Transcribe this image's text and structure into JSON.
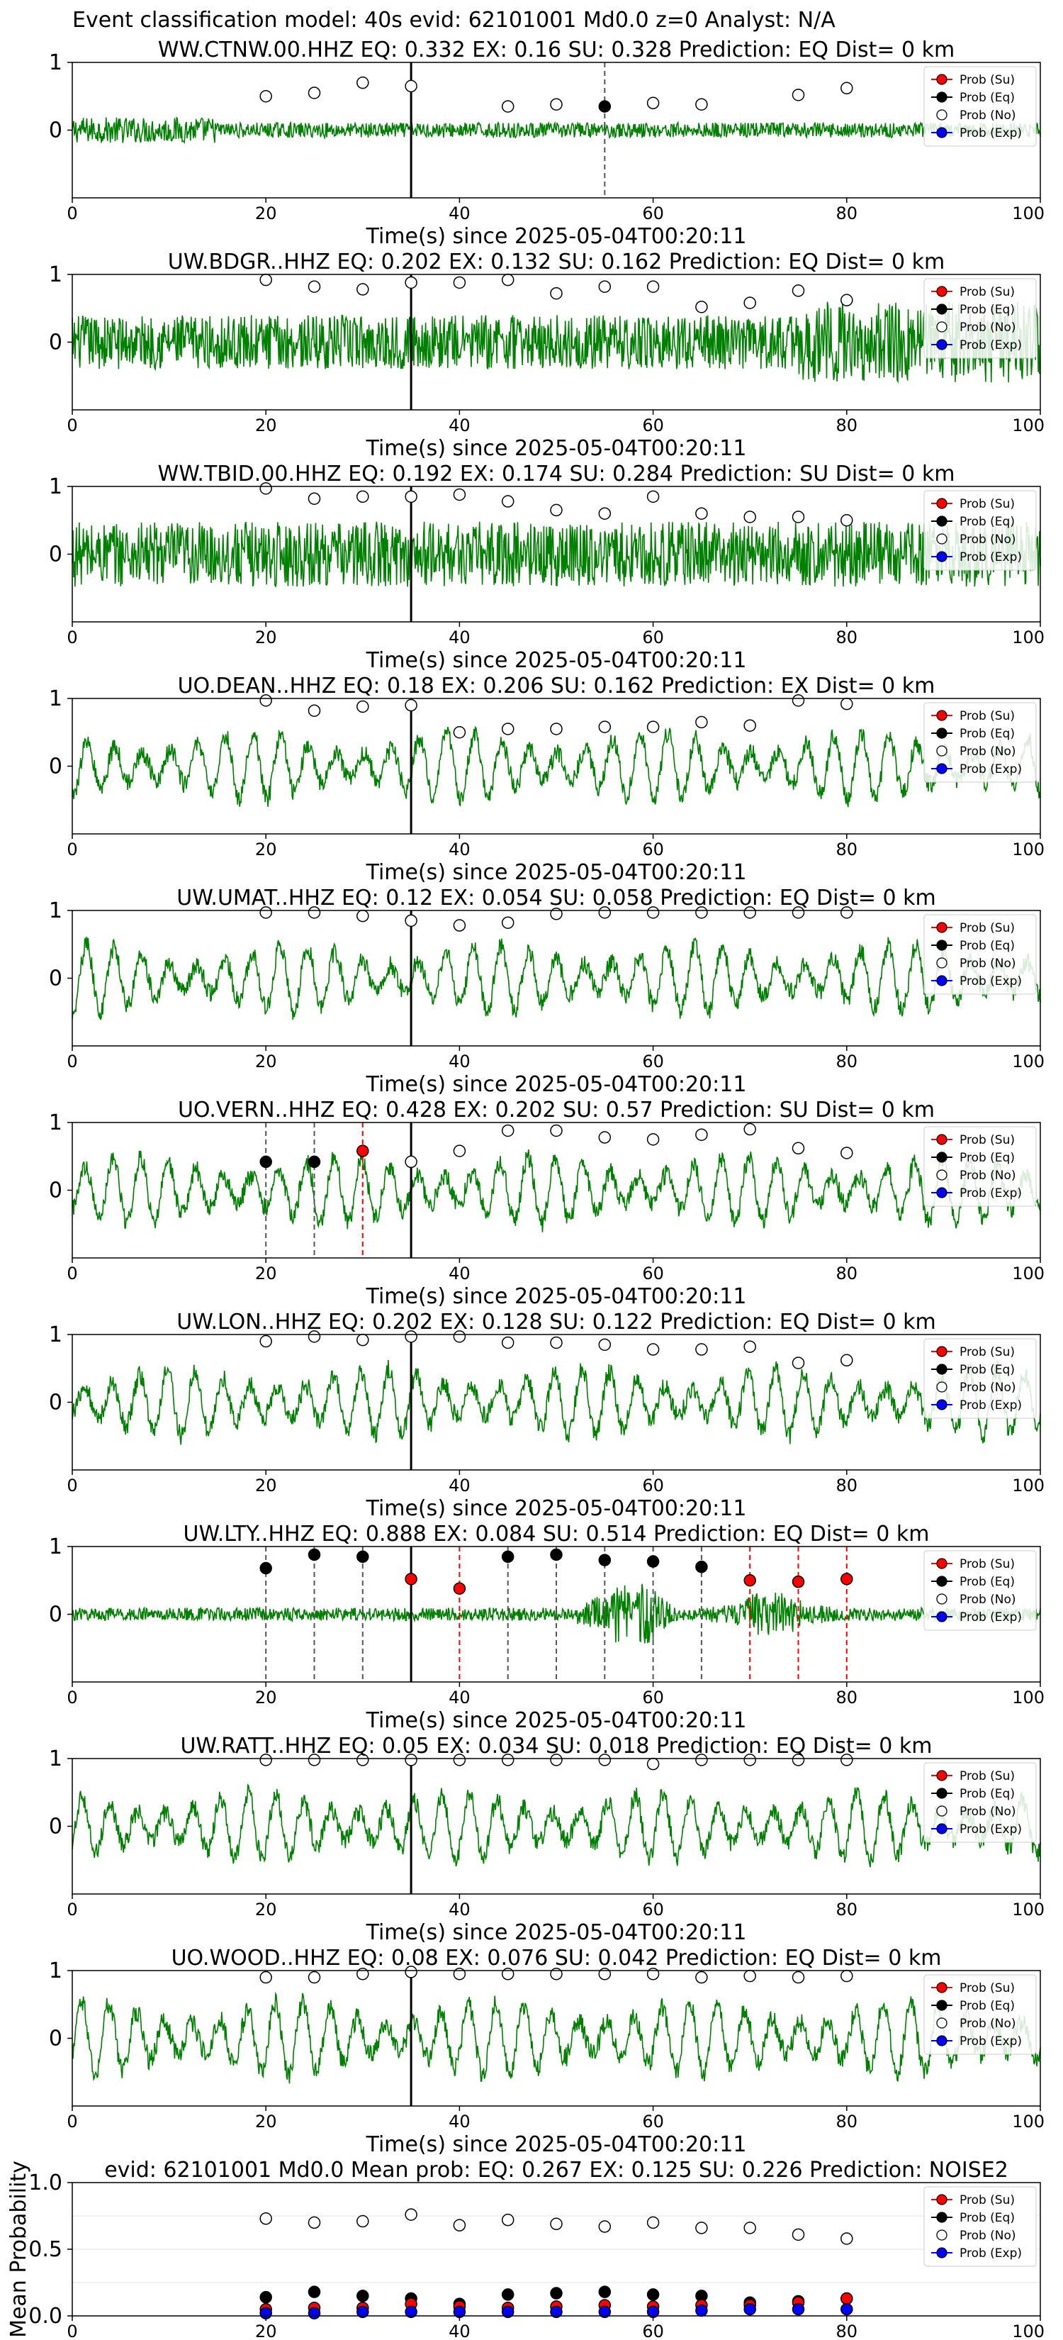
{
  "figure": {
    "suptitle": "Event classification model: 40s evid: 62101001 Md0.0 z=0 Analyst: N/A"
  },
  "legend": {
    "entries": [
      {
        "label": "Prob (Su)",
        "color": "#ff0000"
      },
      {
        "label": "Prob (Eq)",
        "color": "#000000"
      },
      {
        "label": "Prob (No)",
        "color": "#ffffff"
      },
      {
        "label": "Prob (Exp)",
        "color": "#0000ff"
      }
    ]
  },
  "colors": {
    "waveform": "#008000",
    "su": "#ff0000",
    "eq": "#000000",
    "no": "#ffffff",
    "exp": "#0000ff"
  },
  "chart_data": [
    {
      "type": "line",
      "title": "WW.CTNW.00.HHZ   EQ: 0.332  EX: 0.16  SU: 0.328   Prediction: EQ    Dist= 0 km",
      "xlabel": "Time(s) since 2025-05-04T00:20:11",
      "xlim": [
        0,
        100
      ],
      "ylim": [
        -1,
        1
      ],
      "xticks": [
        0,
        20,
        40,
        60,
        80,
        100
      ],
      "yticks": [
        0,
        1
      ],
      "pick_time": 35,
      "amplitude": 0.28,
      "noise": {
        "x": [
          20,
          25,
          30,
          35,
          45,
          50,
          60,
          65,
          75,
          80
        ],
        "y": [
          0.5,
          0.55,
          0.7,
          0.65,
          0.35,
          0.38,
          0.4,
          0.38,
          0.52,
          0.62
        ]
      },
      "eq": {
        "x": [
          55
        ],
        "y": [
          0.35
        ]
      },
      "su": {
        "x": [],
        "y": []
      },
      "eq_lines": [
        55
      ],
      "su_lines": []
    },
    {
      "type": "line",
      "title": "UW.BDGR..HHZ   EQ: 0.202  EX: 0.132  SU: 0.162   Prediction: EQ    Dist= 0 km",
      "xlabel": "Time(s) since 2025-05-04T00:20:11",
      "xlim": [
        0,
        100
      ],
      "ylim": [
        -1,
        1
      ],
      "xticks": [
        0,
        20,
        40,
        60,
        80,
        100
      ],
      "yticks": [
        0,
        1
      ],
      "pick_time": 35,
      "amplitude": 0.5,
      "noise": {
        "x": [
          20,
          25,
          30,
          35,
          40,
          45,
          50,
          55,
          60,
          65,
          70,
          75,
          80
        ],
        "y": [
          0.92,
          0.82,
          0.78,
          0.88,
          0.88,
          0.92,
          0.72,
          0.82,
          0.82,
          0.52,
          0.58,
          0.76,
          0.62
        ]
      },
      "eq": {
        "x": [],
        "y": []
      },
      "su": {
        "x": [],
        "y": []
      },
      "eq_lines": [],
      "su_lines": []
    },
    {
      "type": "line",
      "title": "WW.TBID.00.HHZ   EQ: 0.192  EX: 0.174  SU: 0.284   Prediction: SU    Dist= 0 km",
      "xlabel": "Time(s) since 2025-05-04T00:20:11",
      "xlim": [
        0,
        100
      ],
      "ylim": [
        -1,
        1
      ],
      "xticks": [
        0,
        20,
        40,
        60,
        80,
        100
      ],
      "yticks": [
        0,
        1
      ],
      "pick_time": 35,
      "amplitude": 0.6,
      "noise": {
        "x": [
          20,
          25,
          30,
          35,
          40,
          45,
          50,
          55,
          60,
          65,
          70,
          75,
          80
        ],
        "y": [
          0.97,
          0.82,
          0.85,
          0.85,
          0.88,
          0.78,
          0.65,
          0.6,
          0.85,
          0.6,
          0.55,
          0.55,
          0.5
        ]
      },
      "eq": {
        "x": [],
        "y": []
      },
      "su": {
        "x": [],
        "y": []
      },
      "eq_lines": [],
      "su_lines": []
    },
    {
      "type": "line",
      "title": "UO.DEAN..HHZ   EQ: 0.18  EX: 0.206  SU: 0.162   Prediction: EX    Dist= 0 km",
      "xlabel": "Time(s) since 2025-05-04T00:20:11",
      "xlim": [
        0,
        100
      ],
      "ylim": [
        -1,
        1
      ],
      "xticks": [
        0,
        20,
        40,
        60,
        80,
        100
      ],
      "yticks": [
        0,
        1
      ],
      "pick_time": 35,
      "amplitude": 0.55,
      "noise": {
        "x": [
          20,
          25,
          30,
          35,
          40,
          45,
          50,
          55,
          60,
          65,
          70,
          75,
          80
        ],
        "y": [
          0.97,
          0.82,
          0.88,
          0.9,
          0.5,
          0.55,
          0.55,
          0.58,
          0.58,
          0.65,
          0.6,
          0.97,
          0.92
        ]
      },
      "eq": {
        "x": [],
        "y": []
      },
      "su": {
        "x": [],
        "y": []
      },
      "eq_lines": [],
      "su_lines": []
    },
    {
      "type": "line",
      "title": "UW.UMAT..HHZ   EQ: 0.12  EX: 0.054  SU: 0.058   Prediction: EQ    Dist= 0 km",
      "xlabel": "Time(s) since 2025-05-04T00:20:11",
      "xlim": [
        0,
        100
      ],
      "ylim": [
        -1,
        1
      ],
      "xticks": [
        0,
        20,
        40,
        60,
        80,
        100
      ],
      "yticks": [
        0,
        1
      ],
      "pick_time": 35,
      "amplitude": 0.55,
      "noise": {
        "x": [
          20,
          25,
          30,
          35,
          40,
          45,
          50,
          55,
          60,
          65,
          70,
          75,
          80
        ],
        "y": [
          0.97,
          0.97,
          0.92,
          0.85,
          0.78,
          0.82,
          0.95,
          0.97,
          0.97,
          0.97,
          0.97,
          0.97,
          0.97
        ]
      },
      "eq": {
        "x": [],
        "y": []
      },
      "su": {
        "x": [],
        "y": []
      },
      "eq_lines": [],
      "su_lines": []
    },
    {
      "type": "line",
      "title": "UO.VERN..HHZ   EQ: 0.428  EX: 0.202  SU: 0.57   Prediction: SU    Dist= 0 km",
      "xlabel": "Time(s) since 2025-05-04T00:20:11",
      "xlim": [
        0,
        100
      ],
      "ylim": [
        -1,
        1
      ],
      "xticks": [
        0,
        20,
        40,
        60,
        80,
        100
      ],
      "yticks": [
        0,
        1
      ],
      "pick_time": 35,
      "amplitude": 0.55,
      "noise": {
        "x": [
          35,
          40,
          45,
          50,
          55,
          60,
          65,
          70,
          75,
          80
        ],
        "y": [
          0.42,
          0.58,
          0.88,
          0.88,
          0.78,
          0.75,
          0.82,
          0.9,
          0.62,
          0.55
        ]
      },
      "eq": {
        "x": [
          20,
          25
        ],
        "y": [
          0.42,
          0.42
        ]
      },
      "su": {
        "x": [
          30
        ],
        "y": [
          0.58
        ]
      },
      "eq_lines": [
        20,
        25
      ],
      "su_lines": [
        30
      ]
    },
    {
      "type": "line",
      "title": "UW.LON..HHZ   EQ: 0.202  EX: 0.128  SU: 0.122   Prediction: EQ    Dist= 0 km",
      "xlabel": "Time(s) since 2025-05-04T00:20:11",
      "xlim": [
        0,
        100
      ],
      "ylim": [
        -1,
        1
      ],
      "xticks": [
        0,
        20,
        40,
        60,
        80,
        100
      ],
      "yticks": [
        0,
        1
      ],
      "pick_time": 35,
      "amplitude": 0.55,
      "noise": {
        "x": [
          20,
          25,
          30,
          35,
          40,
          45,
          50,
          55,
          60,
          65,
          70,
          75,
          80
        ],
        "y": [
          0.9,
          0.97,
          0.92,
          0.97,
          0.97,
          0.88,
          0.88,
          0.85,
          0.78,
          0.78,
          0.82,
          0.58,
          0.62
        ]
      },
      "eq": {
        "x": [],
        "y": []
      },
      "su": {
        "x": [],
        "y": []
      },
      "eq_lines": [],
      "su_lines": []
    },
    {
      "type": "line",
      "title": "UW.LTY..HHZ   EQ: 0.888  EX: 0.084  SU: 0.514   Prediction: EQ    Dist= 0 km",
      "xlabel": "Time(s) since 2025-05-04T00:20:11",
      "xlim": [
        0,
        100
      ],
      "ylim": [
        -1,
        1
      ],
      "xticks": [
        0,
        20,
        40,
        60,
        80,
        100
      ],
      "yticks": [
        0,
        1
      ],
      "pick_time": 35,
      "amplitude": 0.18,
      "noise": {
        "x": [],
        "y": []
      },
      "eq": {
        "x": [
          20,
          25,
          30,
          45,
          50,
          55,
          60,
          65
        ],
        "y": [
          0.68,
          0.88,
          0.85,
          0.85,
          0.88,
          0.8,
          0.78,
          0.7
        ]
      },
      "su": {
        "x": [
          35,
          40,
          70,
          75,
          80
        ],
        "y": [
          0.52,
          0.38,
          0.5,
          0.48,
          0.52
        ]
      },
      "eq_lines": [
        20,
        25,
        30,
        45,
        50,
        55,
        60,
        65
      ],
      "su_lines": [
        40,
        70,
        75,
        80
      ]
    },
    {
      "type": "line",
      "title": "UW.RATT..HHZ   EQ: 0.05  EX: 0.034  SU: 0.018   Prediction: EQ    Dist= 0 km",
      "xlabel": "Time(s) since 2025-05-04T00:20:11",
      "xlim": [
        0,
        100
      ],
      "ylim": [
        -1,
        1
      ],
      "xticks": [
        0,
        20,
        40,
        60,
        80,
        100
      ],
      "yticks": [
        0,
        1
      ],
      "pick_time": 35,
      "amplitude": 0.55,
      "noise": {
        "x": [
          20,
          25,
          30,
          35,
          40,
          45,
          50,
          55,
          60,
          65,
          70,
          75,
          80
        ],
        "y": [
          0.98,
          0.98,
          0.98,
          0.98,
          0.98,
          0.98,
          0.98,
          0.98,
          0.92,
          0.98,
          0.98,
          0.98,
          0.98
        ]
      },
      "eq": {
        "x": [],
        "y": []
      },
      "su": {
        "x": [],
        "y": []
      },
      "eq_lines": [],
      "su_lines": []
    },
    {
      "type": "line",
      "title": "UO.WOOD..HHZ   EQ: 0.08  EX: 0.076  SU: 0.042   Prediction: EQ    Dist= 0 km",
      "xlabel": "Time(s) since 2025-05-04T00:20:11",
      "xlim": [
        0,
        100
      ],
      "ylim": [
        -1,
        1
      ],
      "xticks": [
        0,
        20,
        40,
        60,
        80,
        100
      ],
      "yticks": [
        0,
        1
      ],
      "pick_time": 35,
      "amplitude": 0.6,
      "noise": {
        "x": [
          20,
          25,
          30,
          35,
          40,
          45,
          50,
          55,
          60,
          65,
          70,
          75,
          80
        ],
        "y": [
          0.9,
          0.9,
          0.95,
          0.98,
          0.95,
          0.95,
          0.95,
          0.95,
          0.95,
          0.9,
          0.92,
          0.9,
          0.92
        ]
      },
      "eq": {
        "x": [],
        "y": []
      },
      "su": {
        "x": [],
        "y": []
      },
      "eq_lines": [],
      "su_lines": []
    },
    {
      "type": "scatter",
      "title": "evid: 62101001   Md0.0   Mean prob:   EQ: 0.267  EX: 0.125  SU: 0.226   Prediction: NOISE2",
      "xlabel": "",
      "ylabel": "Mean Probability",
      "xlim": [
        0,
        100
      ],
      "ylim": [
        0,
        1
      ],
      "xticks": [
        0,
        20,
        40,
        60,
        80,
        100
      ],
      "yticks": [
        0.0,
        0.5,
        1.0
      ],
      "ytick_labels": [
        "0.0",
        "0.5",
        "1.0"
      ],
      "x": [
        20,
        25,
        30,
        35,
        40,
        45,
        50,
        55,
        60,
        65,
        70,
        75,
        80
      ],
      "series": [
        {
          "name": "Prob (No)",
          "values": [
            0.73,
            0.7,
            0.71,
            0.76,
            0.68,
            0.72,
            0.69,
            0.67,
            0.7,
            0.66,
            0.66,
            0.61,
            0.58
          ]
        },
        {
          "name": "Prob (Eq)",
          "values": [
            0.14,
            0.18,
            0.15,
            0.13,
            0.09,
            0.16,
            0.17,
            0.18,
            0.16,
            0.15,
            0.1,
            0.11,
            0.13
          ]
        },
        {
          "name": "Prob (Su)",
          "values": [
            0.05,
            0.06,
            0.06,
            0.09,
            0.07,
            0.06,
            0.07,
            0.08,
            0.07,
            0.08,
            0.08,
            0.1,
            0.13
          ]
        },
        {
          "name": "Prob (Exp)",
          "values": [
            0.02,
            0.02,
            0.03,
            0.03,
            0.03,
            0.03,
            0.03,
            0.03,
            0.03,
            0.04,
            0.05,
            0.05,
            0.05
          ]
        }
      ]
    }
  ]
}
